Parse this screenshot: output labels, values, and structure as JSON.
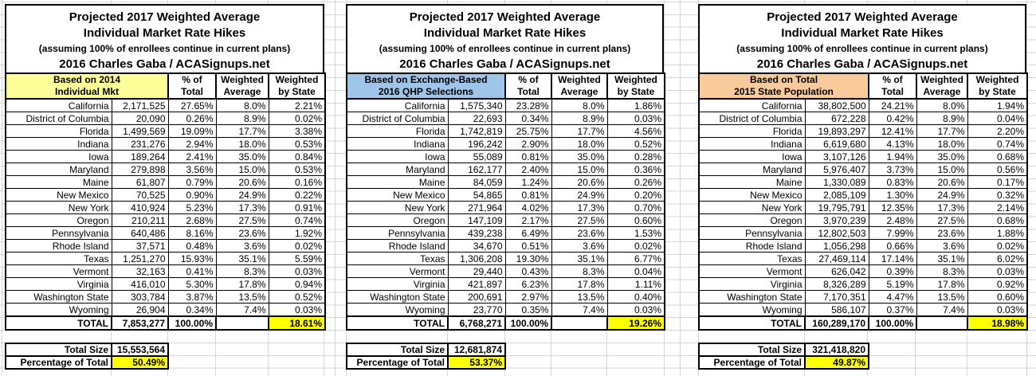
{
  "title": {
    "line1": "Projected 2017 Weighted Average",
    "line2": "Individual Market Rate Hikes",
    "line3": "(assuming 100% of enrollees continue in current plans)",
    "line4": "2016 Charles Gaba / ACASignups.net"
  },
  "columns": {
    "pct": [
      "% of",
      "Total"
    ],
    "wavg": [
      "Weighted",
      "Average"
    ],
    "wbys": [
      "Weighted",
      "by State"
    ]
  },
  "highlight_color": "#FFFF00",
  "gridline_color": "#d6d6d6",
  "tables": [
    {
      "header_line1": "Based on 2014",
      "header_line2": "Individual Mkt",
      "header_color": "#FFFF99",
      "rows": [
        {
          "state": "California",
          "value": "2,171,525",
          "pct": "27.65%",
          "wavg": "8.0%",
          "wbys": "2.21%"
        },
        {
          "state": "District of Columbia",
          "value": "20,090",
          "pct": "0.26%",
          "wavg": "8.9%",
          "wbys": "0.02%"
        },
        {
          "state": "Florida",
          "value": "1,499,569",
          "pct": "19.09%",
          "wavg": "17.7%",
          "wbys": "3.38%"
        },
        {
          "state": "Indiana",
          "value": "231,276",
          "pct": "2.94%",
          "wavg": "18.0%",
          "wbys": "0.53%"
        },
        {
          "state": "Iowa",
          "value": "189,264",
          "pct": "2.41%",
          "wavg": "35.0%",
          "wbys": "0.84%"
        },
        {
          "state": "Maryland",
          "value": "279,898",
          "pct": "3.56%",
          "wavg": "15.0%",
          "wbys": "0.53%"
        },
        {
          "state": "Maine",
          "value": "61,807",
          "pct": "0.79%",
          "wavg": "20.6%",
          "wbys": "0.16%"
        },
        {
          "state": "New Mexico",
          "value": "70,525",
          "pct": "0.90%",
          "wavg": "24.9%",
          "wbys": "0.22%"
        },
        {
          "state": "New York",
          "value": "410,924",
          "pct": "5.23%",
          "wavg": "17.3%",
          "wbys": "0.91%"
        },
        {
          "state": "Oregon",
          "value": "210,211",
          "pct": "2.68%",
          "wavg": "27.5%",
          "wbys": "0.74%"
        },
        {
          "state": "Pennsylvania",
          "value": "640,486",
          "pct": "8.16%",
          "wavg": "23.6%",
          "wbys": "1.92%"
        },
        {
          "state": "Rhode Island",
          "value": "37,571",
          "pct": "0.48%",
          "wavg": "3.6%",
          "wbys": "0.02%"
        },
        {
          "state": "Texas",
          "value": "1,251,270",
          "pct": "15.93%",
          "wavg": "35.1%",
          "wbys": "5.59%"
        },
        {
          "state": "Vermont",
          "value": "32,163",
          "pct": "0.41%",
          "wavg": "8.3%",
          "wbys": "0.03%"
        },
        {
          "state": "Virginia",
          "value": "416,010",
          "pct": "5.30%",
          "wavg": "17.8%",
          "wbys": "0.94%"
        },
        {
          "state": "Washington State",
          "value": "303,784",
          "pct": "3.87%",
          "wavg": "13.5%",
          "wbys": "0.52%"
        },
        {
          "state": "Wyoming",
          "value": "26,904",
          "pct": "0.34%",
          "wavg": "7.4%",
          "wbys": "0.03%"
        }
      ],
      "total": {
        "label": "TOTAL",
        "value": "7,853,277",
        "pct": "100.00%",
        "wavg": "",
        "wbys": "18.61%"
      },
      "footer": {
        "size_label": "Total Size",
        "size_value": "15,553,564",
        "pct_label": "Percentage of Total",
        "pct_value": "50.49%"
      }
    },
    {
      "header_line1": "Based on Exchange-Based",
      "header_line2": "2016 QHP Selections",
      "header_color": "#9FC5E8",
      "rows": [
        {
          "state": "California",
          "value": "1,575,340",
          "pct": "23.28%",
          "wavg": "8.0%",
          "wbys": "1.86%"
        },
        {
          "state": "District of Columbia",
          "value": "22,693",
          "pct": "0.34%",
          "wavg": "8.9%",
          "wbys": "0.03%"
        },
        {
          "state": "Florida",
          "value": "1,742,819",
          "pct": "25.75%",
          "wavg": "17.7%",
          "wbys": "4.56%"
        },
        {
          "state": "Indiana",
          "value": "196,242",
          "pct": "2.90%",
          "wavg": "18.0%",
          "wbys": "0.52%"
        },
        {
          "state": "Iowa",
          "value": "55,089",
          "pct": "0.81%",
          "wavg": "35.0%",
          "wbys": "0.28%"
        },
        {
          "state": "Maryland",
          "value": "162,177",
          "pct": "2.40%",
          "wavg": "15.0%",
          "wbys": "0.36%"
        },
        {
          "state": "Maine",
          "value": "84,059",
          "pct": "1.24%",
          "wavg": "20.6%",
          "wbys": "0.26%"
        },
        {
          "state": "New Mexico",
          "value": "54,865",
          "pct": "0.81%",
          "wavg": "24.9%",
          "wbys": "0.20%"
        },
        {
          "state": "New York",
          "value": "271,964",
          "pct": "4.02%",
          "wavg": "17.3%",
          "wbys": "0.70%"
        },
        {
          "state": "Oregon",
          "value": "147,109",
          "pct": "2.17%",
          "wavg": "27.5%",
          "wbys": "0.60%"
        },
        {
          "state": "Pennsylvania",
          "value": "439,238",
          "pct": "6.49%",
          "wavg": "23.6%",
          "wbys": "1.53%"
        },
        {
          "state": "Rhode Island",
          "value": "34,670",
          "pct": "0.51%",
          "wavg": "3.6%",
          "wbys": "0.02%"
        },
        {
          "state": "Texas",
          "value": "1,306,208",
          "pct": "19.30%",
          "wavg": "35.1%",
          "wbys": "6.77%"
        },
        {
          "state": "Vermont",
          "value": "29,440",
          "pct": "0.43%",
          "wavg": "8.3%",
          "wbys": "0.04%"
        },
        {
          "state": "Virginia",
          "value": "421,897",
          "pct": "6.23%",
          "wavg": "17.8%",
          "wbys": "1.11%"
        },
        {
          "state": "Washington State",
          "value": "200,691",
          "pct": "2.97%",
          "wavg": "13.5%",
          "wbys": "0.40%"
        },
        {
          "state": "Wyoming",
          "value": "23,770",
          "pct": "0.35%",
          "wavg": "7.4%",
          "wbys": "0.03%"
        }
      ],
      "total": {
        "label": "TOTAL",
        "value": "6,768,271",
        "pct": "100.00%",
        "wavg": "",
        "wbys": "19.26%"
      },
      "footer": {
        "size_label": "Total Size",
        "size_value": "12,681,874",
        "pct_label": "Percentage of Total",
        "pct_value": "53.37%"
      }
    },
    {
      "header_line1": "Based on Total",
      "header_line2": "2015 State Population",
      "header_color": "#F9CB9C",
      "rows": [
        {
          "state": "California",
          "value": "38,802,500",
          "pct": "24.21%",
          "wavg": "8.0%",
          "wbys": "1.94%"
        },
        {
          "state": "District of Columbia",
          "value": "672,228",
          "pct": "0.42%",
          "wavg": "8.9%",
          "wbys": "0.04%"
        },
        {
          "state": "Florida",
          "value": "19,893,297",
          "pct": "12.41%",
          "wavg": "17.7%",
          "wbys": "2.20%"
        },
        {
          "state": "Indiana",
          "value": "6,619,680",
          "pct": "4.13%",
          "wavg": "18.0%",
          "wbys": "0.74%"
        },
        {
          "state": "Iowa",
          "value": "3,107,126",
          "pct": "1.94%",
          "wavg": "35.0%",
          "wbys": "0.68%"
        },
        {
          "state": "Maryland",
          "value": "5,976,407",
          "pct": "3.73%",
          "wavg": "15.0%",
          "wbys": "0.56%"
        },
        {
          "state": "Maine",
          "value": "1,330,089",
          "pct": "0.83%",
          "wavg": "20.6%",
          "wbys": "0.17%"
        },
        {
          "state": "New Mexico",
          "value": "2,085,109",
          "pct": "1.30%",
          "wavg": "24.9%",
          "wbys": "0.32%"
        },
        {
          "state": "New York",
          "value": "19,795,791",
          "pct": "12.35%",
          "wavg": "17.3%",
          "wbys": "2.14%"
        },
        {
          "state": "Oregon",
          "value": "3,970,239",
          "pct": "2.48%",
          "wavg": "27.5%",
          "wbys": "0.68%"
        },
        {
          "state": "Pennsylvania",
          "value": "12,802,503",
          "pct": "7.99%",
          "wavg": "23.6%",
          "wbys": "1.88%"
        },
        {
          "state": "Rhode Island",
          "value": "1,056,298",
          "pct": "0.66%",
          "wavg": "3.6%",
          "wbys": "0.02%"
        },
        {
          "state": "Texas",
          "value": "27,469,114",
          "pct": "17.14%",
          "wavg": "35.1%",
          "wbys": "6.02%"
        },
        {
          "state": "Vermont",
          "value": "626,042",
          "pct": "0.39%",
          "wavg": "8.3%",
          "wbys": "0.03%"
        },
        {
          "state": "Virginia",
          "value": "8,326,289",
          "pct": "5.19%",
          "wavg": "17.8%",
          "wbys": "0.92%"
        },
        {
          "state": "Washington State",
          "value": "7,170,351",
          "pct": "4.47%",
          "wavg": "13.5%",
          "wbys": "0.60%"
        },
        {
          "state": "Wyoming",
          "value": "586,107",
          "pct": "0.37%",
          "wavg": "7.4%",
          "wbys": "0.03%"
        }
      ],
      "total": {
        "label": "TOTAL",
        "value": "160,289,170",
        "pct": "100.00%",
        "wavg": "",
        "wbys": "18.98%"
      },
      "footer": {
        "size_label": "Total Size",
        "size_value": "321,418,820",
        "pct_label": "Percentage of Total",
        "pct_value": "49.87%"
      }
    }
  ]
}
